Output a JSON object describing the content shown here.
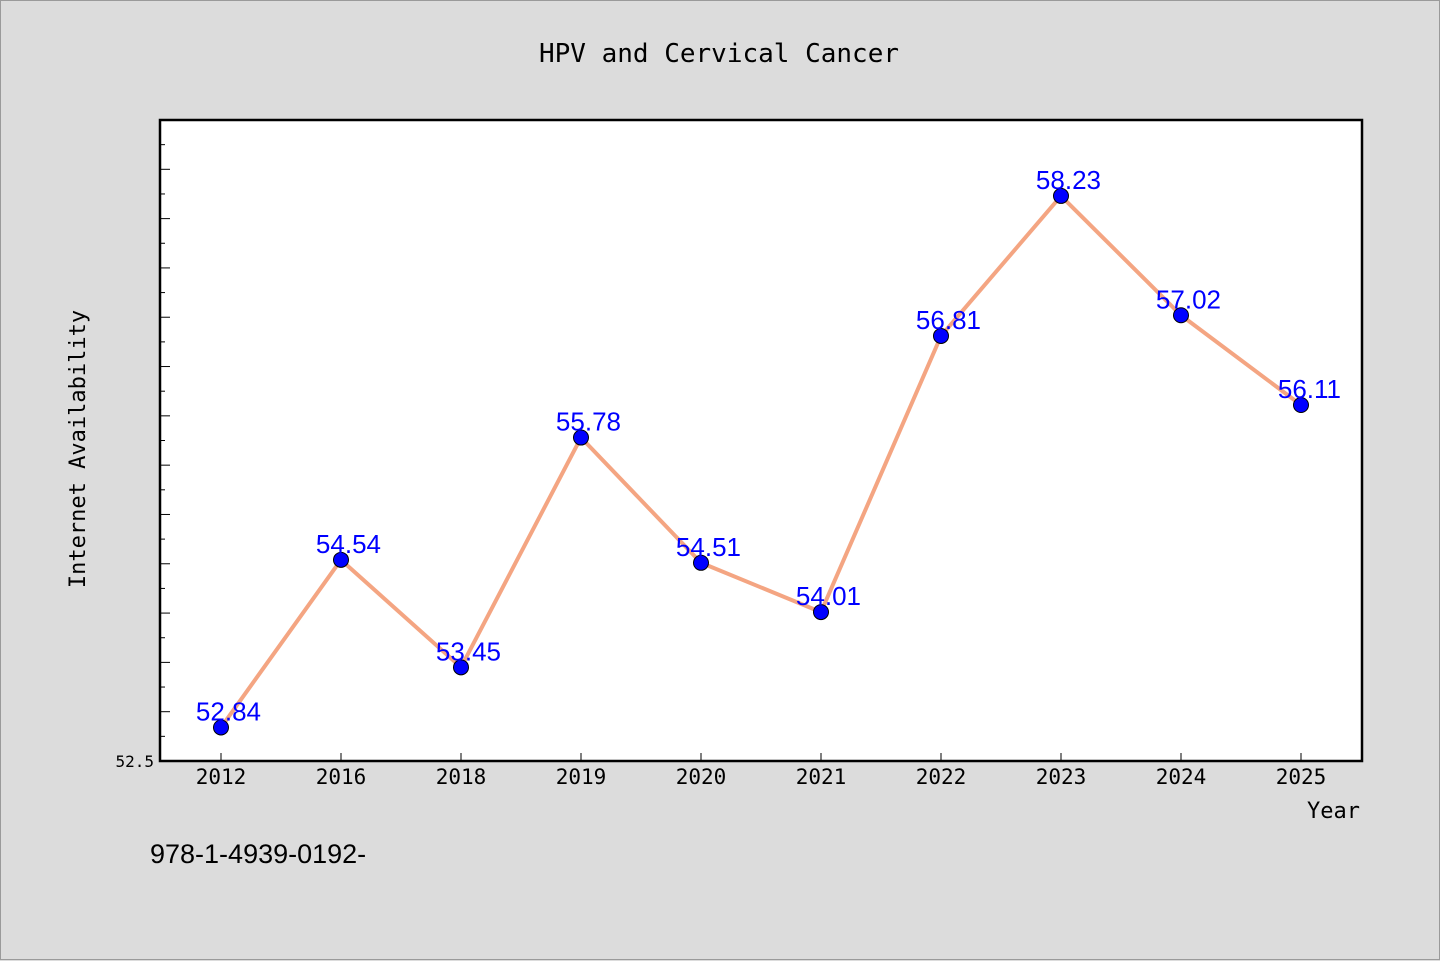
{
  "chart_data": {
    "type": "line",
    "title": "HPV and Cervical Cancer",
    "xlabel": "Year",
    "ylabel": "Internet Availability",
    "categories": [
      "2012",
      "2016",
      "2018",
      "2019",
      "2020",
      "2021",
      "2022",
      "2023",
      "2024",
      "2025"
    ],
    "series": [
      {
        "values": [
          52.84,
          54.54,
          53.45,
          55.78,
          54.51,
          54.01,
          56.81,
          58.23,
          57.02,
          56.11
        ],
        "data_labels": [
          "52.84",
          "54.54",
          "53.45",
          "55.78",
          "54.51",
          "54.01",
          "56.81",
          "58.23",
          "57.02",
          "56.11"
        ]
      }
    ],
    "yticks": [
      {
        "value": 52.5,
        "label": "52.5"
      }
    ],
    "ylim": [
      52.5,
      59.0
    ],
    "grid": false,
    "colors": {
      "line": "#f4a582",
      "marker": "#0000ff",
      "data_label": "#0000ff",
      "plot_bg": "#ffffff",
      "figure_bg": "#dcdcdc"
    }
  },
  "footer_text": "978-1-4939-0192-"
}
